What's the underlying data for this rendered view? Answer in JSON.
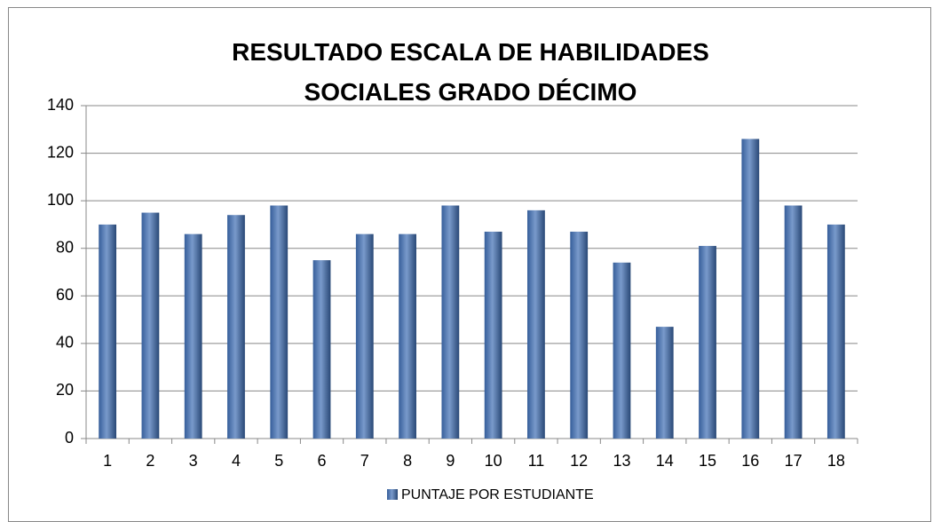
{
  "chart_data": {
    "type": "bar",
    "title": "RESULTADO ESCALA DE HABILIDADES SOCIALES GRADO DÉCIMO",
    "categories": [
      "1",
      "2",
      "3",
      "4",
      "5",
      "6",
      "7",
      "8",
      "9",
      "10",
      "11",
      "12",
      "13",
      "14",
      "15",
      "16",
      "17",
      "18"
    ],
    "series": [
      {
        "name": "PUNTAJE POR ESTUDIANTE",
        "color": "#3f6fb5",
        "values": [
          90,
          95,
          86,
          94,
          98,
          75,
          86,
          86,
          98,
          87,
          96,
          87,
          74,
          47,
          81,
          126,
          98,
          90
        ]
      }
    ],
    "ylim": [
      0,
      140
    ],
    "yticks": [
      0,
      20,
      40,
      60,
      80,
      100,
      120,
      140
    ],
    "grid": true,
    "legend": "bottom"
  }
}
